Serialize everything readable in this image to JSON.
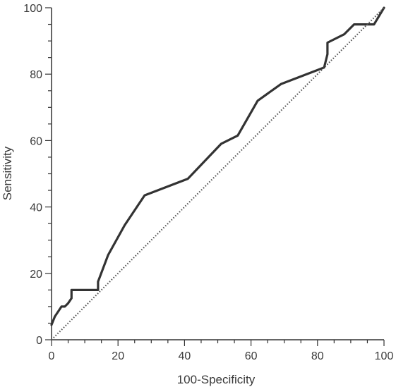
{
  "chart_data": {
    "type": "line",
    "title": "",
    "xlabel": "100-Specificity",
    "ylabel": "Sensitivity",
    "xlim": [
      0,
      100
    ],
    "ylim": [
      0,
      100
    ],
    "x_ticks": [
      0,
      20,
      40,
      60,
      80,
      100
    ],
    "y_ticks": [
      0,
      20,
      40,
      60,
      80,
      100
    ],
    "x_tick_labels": [
      "0",
      "20",
      "40",
      "60",
      "80",
      "100"
    ],
    "y_tick_labels": [
      "0",
      "20",
      "40",
      "60",
      "80",
      "100"
    ],
    "x_minor_step": 5,
    "y_minor_step": 5,
    "grid": false,
    "legend": "none",
    "series": [
      {
        "style": "solid",
        "color": "#333333",
        "x": [
          0,
          1,
          2,
          3,
          4,
          5,
          6,
          6,
          9,
          12,
          14,
          14,
          17,
          22,
          28,
          41,
          51,
          56,
          62,
          69,
          82,
          83,
          83,
          88,
          91,
          94,
          97,
          100
        ],
        "y": [
          4.5,
          7,
          8.5,
          10,
          10,
          11,
          12.5,
          15,
          15,
          15,
          15,
          17.5,
          25.5,
          34.5,
          43.5,
          48.5,
          59,
          61.5,
          72,
          77,
          82,
          86,
          89.5,
          92,
          95,
          95,
          95,
          100
        ]
      },
      {
        "style": "dotted",
        "color": "#555555",
        "x": [
          0,
          100
        ],
        "y": [
          0,
          100
        ]
      }
    ]
  }
}
